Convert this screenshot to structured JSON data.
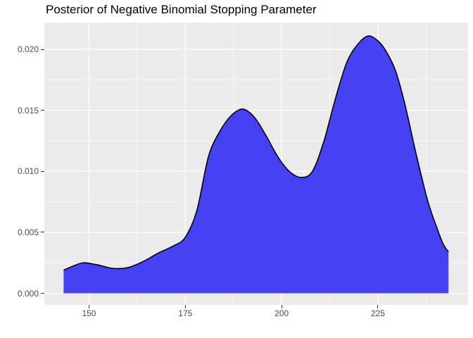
{
  "title": "Posterior of Negative Binomial Stopping Parameter",
  "colors": {
    "figure_background": "#FFFFFF",
    "panel_background": "#EBEBEB",
    "grid_major": "#FFFFFF",
    "grid_minor": "#FFFFFF",
    "area_fill": "#4641F2",
    "curve_stroke": "#000000",
    "axis_text": "#4D4D4D",
    "tick_mark": "#333333",
    "title_color": "#000000"
  },
  "axes": {
    "x": {
      "tick_values": [
        150,
        175,
        200,
        225
      ],
      "tick_labels": [
        "150",
        "175",
        "200",
        "225"
      ]
    },
    "y": {
      "tick_values": [
        0,
        0.005,
        0.01,
        0.015,
        0.02
      ],
      "tick_labels": [
        "0.000",
        "0.005",
        "0.010",
        "0.015",
        "0.020"
      ]
    }
  },
  "chart_data": {
    "type": "area",
    "title": "Posterior of Negative Binomial Stopping Parameter",
    "xlabel": "",
    "ylabel": "",
    "xlim": [
      138.4,
      248.4
    ],
    "ylim": [
      -0.00095,
      0.0222
    ],
    "grid": true,
    "legend": false,
    "style": "ggplot2 kernel density plot, solid blue fill with black outline on gray panel",
    "x": [
      143.4,
      146.0,
      148.5,
      152.0,
      156.0,
      160.0,
      164.0,
      168.0,
      172.0,
      175.0,
      178.0,
      181.0,
      184.0,
      187.0,
      190.0,
      193.0,
      196.0,
      199.0,
      202.0,
      205.0,
      208.0,
      211.0,
      214.0,
      217.0,
      220.0,
      222.5,
      225.0,
      227.0,
      229.5,
      232.0,
      235.0,
      238.0,
      240.5,
      242.0,
      243.3
    ],
    "density": [
      0.0019,
      0.00225,
      0.0025,
      0.00235,
      0.00205,
      0.0021,
      0.0026,
      0.0033,
      0.0039,
      0.0046,
      0.0068,
      0.0112,
      0.0133,
      0.0146,
      0.0151,
      0.0144,
      0.0129,
      0.0112,
      0.01,
      0.0095,
      0.01,
      0.0125,
      0.016,
      0.019,
      0.0205,
      0.0211,
      0.0207,
      0.0199,
      0.0183,
      0.0155,
      0.0113,
      0.0075,
      0.0052,
      0.004,
      0.0034
    ],
    "peaks": [
      {
        "x": 148.5,
        "density": 0.0025
      },
      {
        "x": 190,
        "density": 0.0151
      },
      {
        "x": 222.5,
        "density": 0.0211
      }
    ],
    "local_minima": [
      {
        "x": 156,
        "density": 0.00205
      },
      {
        "x": 205,
        "density": 0.0095
      }
    ]
  }
}
